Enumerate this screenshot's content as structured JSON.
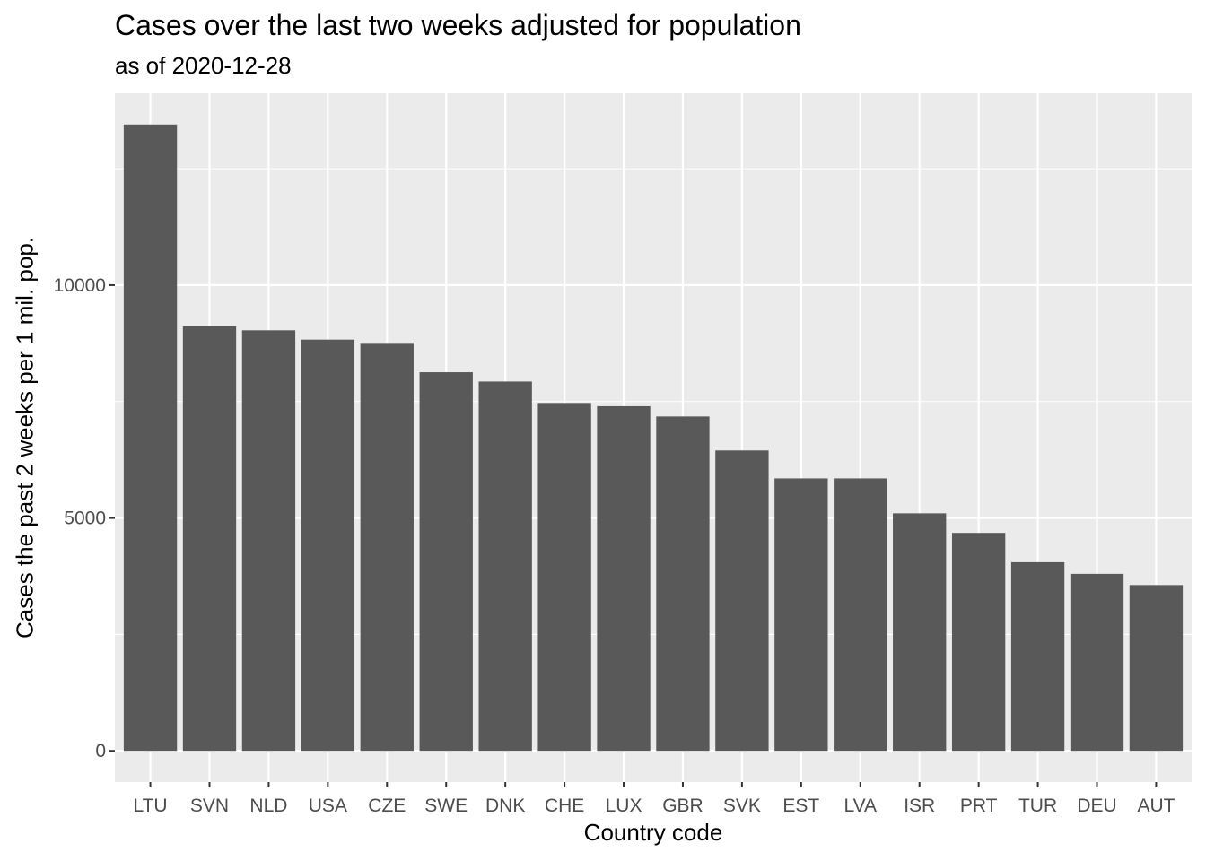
{
  "chart_data": {
    "type": "bar",
    "title": "Cases over the last two weeks adjusted for population",
    "subtitle": "as of 2020-12-28",
    "xlabel": "Country code",
    "ylabel": "Cases the past 2 weeks per 1 mil. pop.",
    "categories": [
      "LTU",
      "SVN",
      "NLD",
      "USA",
      "CZE",
      "SWE",
      "DNK",
      "CHE",
      "LUX",
      "GBR",
      "SVK",
      "EST",
      "LVA",
      "ISR",
      "PRT",
      "TUR",
      "DEU",
      "AUT"
    ],
    "values": [
      13450,
      9120,
      9030,
      8830,
      8760,
      8130,
      7930,
      7470,
      7400,
      7180,
      6450,
      5850,
      5850,
      5100,
      4680,
      4050,
      3800,
      3560
    ],
    "yticks": [
      0,
      5000,
      10000
    ],
    "ytick_labels": [
      "0",
      "5000",
      "10000"
    ],
    "ylim": [
      -670,
      14120
    ],
    "grid": true,
    "legend": "none",
    "colors": {
      "bar": "#595959",
      "panel": "#ebebeb",
      "grid": "#ffffff",
      "tick_text": "#4d4d4d"
    }
  }
}
